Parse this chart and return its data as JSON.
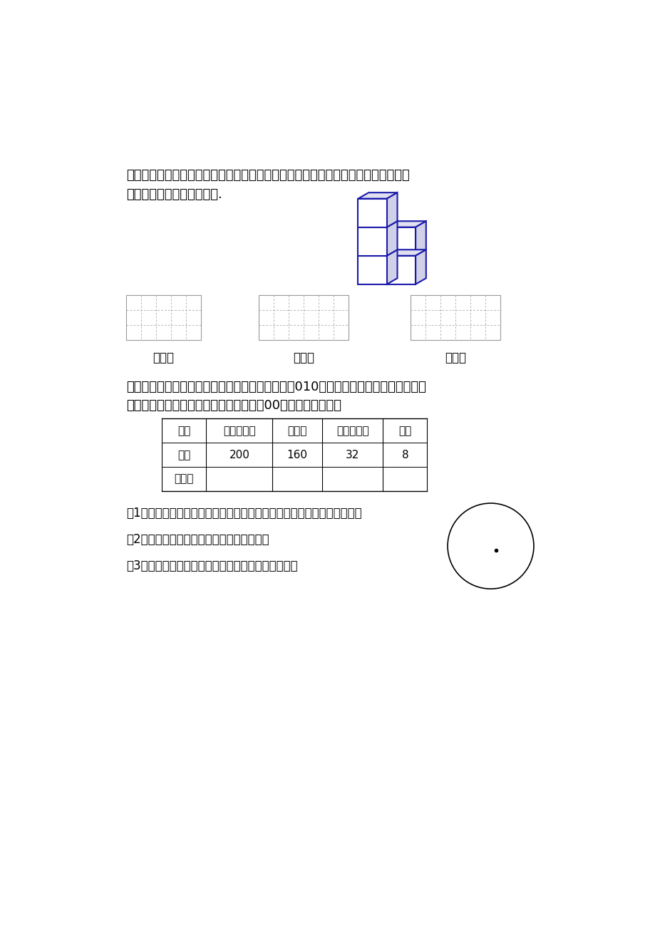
{
  "bg_color": "#ffffff",
  "text_color": "#000000",
  "blue_color": "#1a1aaa",
  "dashed_color": "#999999",
  "q25_text1": "２５、（本小题６分）如图，是由５个正方体组成的图案，请在方格纸中分别画出它",
  "q25_text2": "的主视图、左视图、俯视图.",
  "label_zhushi": "主视图",
  "label_zushi": "左视图",
  "label_fushi": "俯视图",
  "q26_text1": "２６、（本小题９分）中国男子国家足球队冲击２010年南非世界杯失利后，某新闻机",
  "q26_text2": "　　构就中国足球环境问题随机调查了４00人，其结果如下：",
  "table_headers": [
    "意见",
    "非常不满意",
    "不满意",
    "有一点满意",
    "满意"
  ],
  "table_row1_label": "人数",
  "table_row1_values": [
    "200",
    "160",
    "32",
    "8"
  ],
  "table_row2_label": "百分比",
  "q26_sub1": "（1）计算出每一种意见人数占总调查人数的百分比（填在以上空格中）；",
  "q26_sub2": "（2）请画出反映此调查结果的扇形统计图；",
  "q26_sub3": "（3）从统计图中你能得出什么结论？说说你的理由。"
}
